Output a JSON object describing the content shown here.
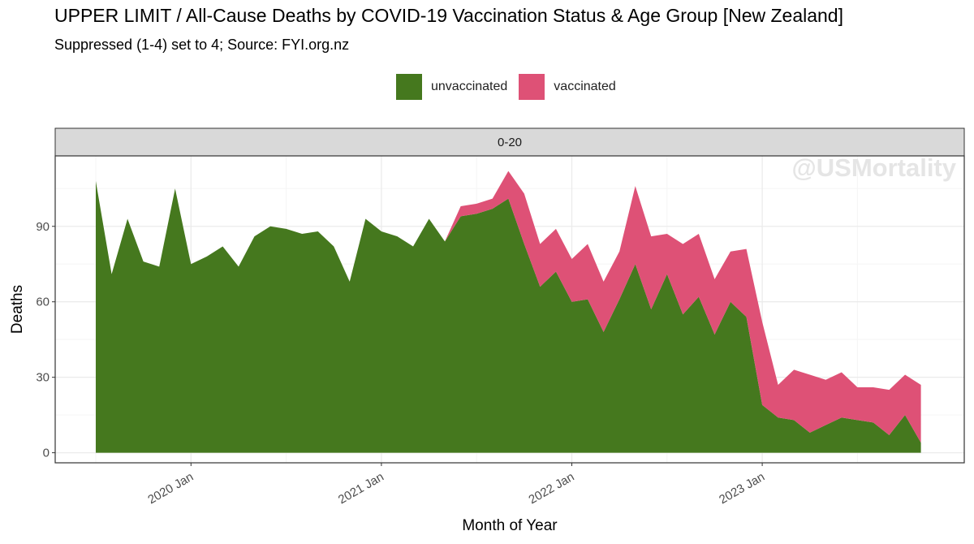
{
  "chart_data": {
    "type": "area",
    "title": "UPPER LIMIT / All-Cause Deaths by COVID-19 Vaccination Status & Age Group [New Zealand]",
    "subtitle": "Suppressed (1-4) set to 4; Source: FYI.org.nz",
    "facet_label": "0-20",
    "watermark": "@USMortality",
    "xlabel": "Month of Year",
    "ylabel": "Deaths",
    "ylim": [
      -4,
      118
    ],
    "y_ticks": [
      0,
      30,
      60,
      90
    ],
    "x_ticks": [
      {
        "label": "2020 Jan",
        "date": "2020-01"
      },
      {
        "label": "2021 Jan",
        "date": "2021-01"
      },
      {
        "label": "2022 Jan",
        "date": "2022-01"
      },
      {
        "label": "2023 Jan",
        "date": "2023-01"
      }
    ],
    "grid": true,
    "legend_position": "top",
    "stacked": true,
    "x": [
      "2019-07",
      "2019-08",
      "2019-09",
      "2019-10",
      "2019-11",
      "2019-12",
      "2020-01",
      "2020-02",
      "2020-03",
      "2020-04",
      "2020-05",
      "2020-06",
      "2020-07",
      "2020-08",
      "2020-09",
      "2020-10",
      "2020-11",
      "2020-12",
      "2021-01",
      "2021-02",
      "2021-03",
      "2021-04",
      "2021-05",
      "2021-06",
      "2021-07",
      "2021-08",
      "2021-09",
      "2021-10",
      "2021-11",
      "2021-12",
      "2022-01",
      "2022-02",
      "2022-03",
      "2022-04",
      "2022-05",
      "2022-06",
      "2022-07",
      "2022-08",
      "2022-09",
      "2022-10",
      "2022-11",
      "2022-12",
      "2023-01",
      "2023-02",
      "2023-03",
      "2023-04",
      "2023-05",
      "2023-06",
      "2023-07",
      "2023-08",
      "2023-09",
      "2023-10",
      "2023-11"
    ],
    "series": [
      {
        "name": "unvaccinated",
        "color": "#45781e",
        "values": [
          108,
          71,
          93,
          76,
          74,
          105,
          75,
          78,
          82,
          74,
          86,
          90,
          89,
          87,
          88,
          82,
          68,
          93,
          88,
          86,
          82,
          93,
          84,
          94,
          95,
          97,
          101,
          83,
          66,
          72,
          60,
          61,
          48,
          61,
          75,
          57,
          71,
          55,
          62,
          47,
          60,
          54,
          19,
          14,
          13,
          8,
          11,
          14,
          13,
          12,
          7,
          15,
          4
        ]
      },
      {
        "name": "vaccinated",
        "color": "#de5176",
        "values": [
          0,
          0,
          0,
          0,
          0,
          0,
          0,
          0,
          0,
          0,
          0,
          0,
          0,
          0,
          0,
          0,
          0,
          0,
          0,
          0,
          0,
          0,
          0,
          4,
          4,
          4,
          11,
          20,
          17,
          17,
          17,
          22,
          20,
          19,
          31,
          29,
          16,
          28,
          25,
          22,
          20,
          27,
          33,
          13,
          20,
          23,
          18,
          18,
          13,
          14,
          18,
          16,
          23
        ]
      }
    ]
  },
  "colors": {
    "panel_border": "#333333",
    "strip_fill": "#d9d9d9",
    "grid_major": "#ebebeb",
    "grid_minor": "#f5f5f5",
    "axis_text": "#4d4d4d",
    "watermark": "#e5e5e5"
  }
}
